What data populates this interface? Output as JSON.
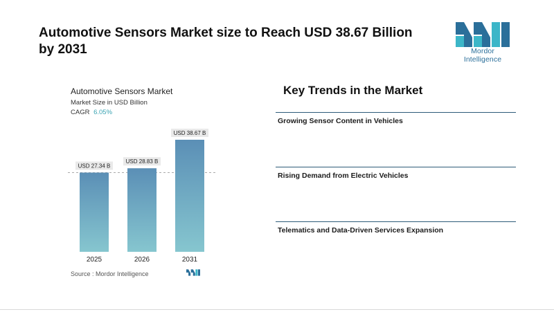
{
  "header": {
    "title": "Automotive Sensors Market size to Reach USD 38.67 Billion by 2031"
  },
  "logo": {
    "text": "Mordor Intelligence",
    "icon": "mordor-logo-icon"
  },
  "chart_data": {
    "type": "bar",
    "title": "Automotive Sensors Market",
    "subtitle": "Market Size in USD Billion",
    "cagr_label": "CAGR",
    "cagr_value": "6.05%",
    "categories": [
      "2025",
      "2026",
      "2031"
    ],
    "values": [
      27.34,
      28.83,
      38.67
    ],
    "data_labels": [
      "USD 27.34 B",
      "USD 28.83 B",
      "USD 38.67 B"
    ],
    "ylim": [
      0,
      38.67
    ],
    "grid": false,
    "reference_line_value": 27.34,
    "colors": {
      "bar_top": "#5b8fb6",
      "bar_bottom": "#86c6cf",
      "label_bg": "#e9e9e9"
    }
  },
  "source": {
    "text": "Source :  Mordor Intelligence"
  },
  "trends": {
    "title": "Key Trends in the Market",
    "items": [
      "Growing Sensor Content in Vehicles",
      "Rising Demand from Electric Vehicles",
      "Telematics and Data-Driven Services Expansion"
    ]
  }
}
